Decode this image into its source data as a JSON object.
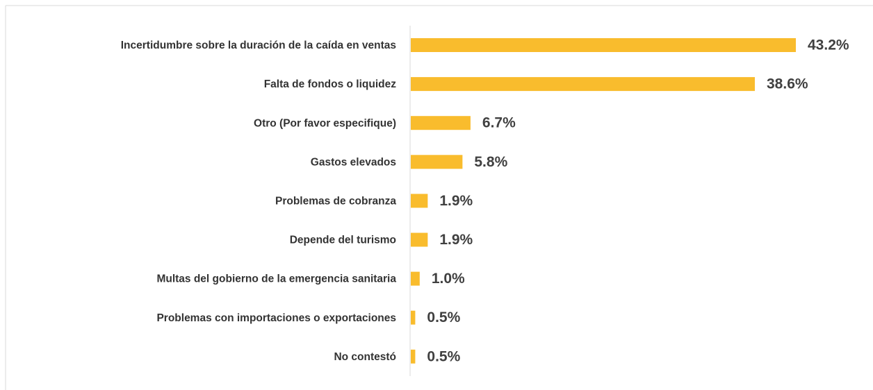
{
  "chart_data": {
    "type": "barh",
    "categories": [
      "Incertidumbre sobre la duración de la caída en ventas",
      "Falta de fondos o liquidez",
      "Otro (Por favor especifique)",
      "Gastos elevados",
      "Problemas de cobranza",
      "Depende del turismo",
      "Multas del gobierno de la emergencia sanitaria",
      "Problemas con importaciones o exportaciones",
      "No contestó"
    ],
    "values": [
      43.2,
      38.6,
      6.7,
      5.8,
      1.9,
      1.9,
      1.0,
      0.5,
      0.5
    ],
    "value_labels": [
      "43.2%",
      "38.6%",
      "6.7%",
      "5.8%",
      "1.9%",
      "1.9%",
      "1.0%",
      "0.5%",
      "0.5%"
    ],
    "color": "#F9BC2D"
  }
}
